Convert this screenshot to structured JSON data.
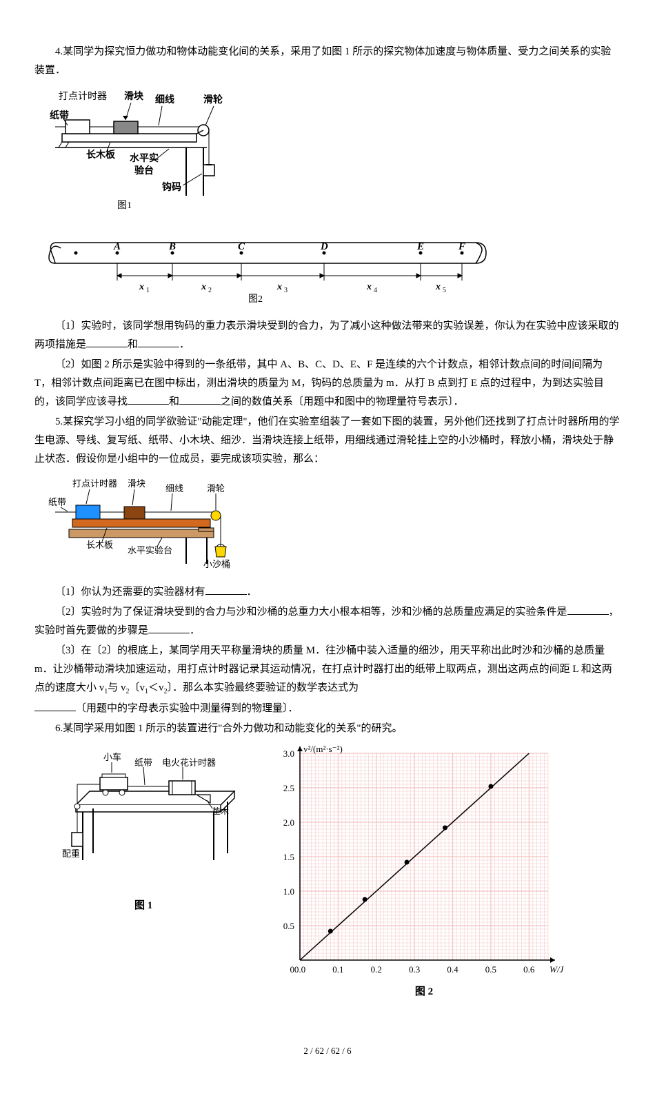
{
  "q4": {
    "intro": "4.某同学为探究恒力做功和物体动能变化间的关系，采用了如图 1 所示的探究物体加速度与物体质量、受力之间关系的实验装置．",
    "fig1": {
      "labels": {
        "timer": "打点计时器",
        "slider": "滑块",
        "thread": "细线",
        "pulley": "滑轮",
        "tape": "纸带",
        "board": "长木板",
        "bench": "水平实验台",
        "weight": "钩码",
        "caption": "图1"
      }
    },
    "fig2": {
      "labels": {
        "A": "A",
        "B": "B",
        "C": "C",
        "D": "D",
        "E": "E",
        "F": "F",
        "x1": "x",
        "x2": "x",
        "x3": "x",
        "x4": "x",
        "x5": "x",
        "caption": "图2"
      }
    },
    "p1a": "〔1〕实验时，该同学想用钩码的重力表示滑块受到的合力，为了减小这种做法带来的实验误差，你认为在实验中应该采取的两项措施是",
    "p1b": "和",
    "p1c": "．",
    "p2": "〔2〕如图 2 所示是实验中得到的一条纸带，其中 A、B、C、D、E、F 是连续的六个计数点，相邻计数点间的时间间隔为 T，相邻计数点间距离已在图中标出，测出滑块的质量为 M，钩码的总质量为 m．从打 B 点到打 E 点的过程中，为到达实验目的，该同学应该寻找",
    "p2b": "和",
    "p2c": "之间的数值关系〔用题中和图中的物理量符号表示〕．"
  },
  "q5": {
    "intro": "5.某探究学习小组的同学欲验证\"动能定理\"，他们在实验室组装了一套如下图的装置，另外他们还找到了打点计时器所用的学生电源、导线、复写纸、纸带、小木块、细沙．当滑块连接上纸带，用细线通过滑轮挂上空的小沙桶时，释放小桶，滑块处于静止状态．假设你是小组中的一位成员，要完成该项实验，那么：",
    "fig": {
      "labels": {
        "timer": "打点计时器",
        "slider": "滑块",
        "thread": "细线",
        "pulley": "滑轮",
        "tape": "纸带",
        "board": "长木板",
        "bench": "水平实验台",
        "bucket": "小沙桶"
      }
    },
    "p1": "〔1〕你认为还需要的实验器材有",
    "p1b": "．",
    "p2a": "〔2〕实验时为了保证滑块受到的合力与沙和沙桶的总重力大小根本相等，沙和沙桶的总质量应满足的实验条件是",
    "p2b": "，实验时首先要做的步骤是",
    "p2c": "．",
    "p3a": "〔3〕在〔2〕的根底上，某同学用天平称量滑块的质量 M．往沙桶中装入适量的细沙，用天平称出此时沙和沙桶的总质量 m．让沙桶带动滑块加速运动，用打点计时器记录其运动情况，在打点计时器打出的纸带上取两点，测出这两点的间距 L 和这两点的速度大小 v",
    "p3b": "与 v",
    "p3c": "〔v",
    "p3d": "＜v",
    "p3e": "〕．那么本实验最终要验证的数学表达式为",
    "p3f": "〔用题中的字母表示实验中测量得到的物理量〕．"
  },
  "q6": {
    "intro": "6.某同学采用如图 1 所示的装置进行\"合外力做功和动能变化的关系\"的研究。",
    "fig1": {
      "labels": {
        "cart": "小车",
        "tape": "纸带",
        "timer": "电火花计时器",
        "wedge": "垫木",
        "weight": "配重",
        "caption": "图 1"
      }
    },
    "chart": {
      "ylabel": "v²/(m²·s⁻²)",
      "xlabel": "W/J",
      "caption": "图 2",
      "ylim": [
        0,
        3.0
      ],
      "xlim": [
        0,
        0.65
      ],
      "yticks": [
        0.5,
        1.0,
        1.5,
        2.0,
        2.5,
        3.0
      ],
      "xticks": [
        0,
        0.1,
        0.2,
        0.3,
        0.4,
        0.5,
        0.6
      ],
      "points": [
        {
          "x": 0.08,
          "y": 0.42
        },
        {
          "x": 0.17,
          "y": 0.88
        },
        {
          "x": 0.28,
          "y": 1.42
        },
        {
          "x": 0.38,
          "y": 1.92
        },
        {
          "x": 0.5,
          "y": 2.52
        }
      ],
      "line": {
        "x1": 0,
        "y1": 0,
        "x2": 0.6,
        "y2": 3.0
      },
      "grid_color": "#f4c2c2",
      "axis_color": "#000000",
      "point_color": "#000000",
      "line_color": "#000000"
    }
  },
  "footer": "2 / 62 / 62 / 6"
}
